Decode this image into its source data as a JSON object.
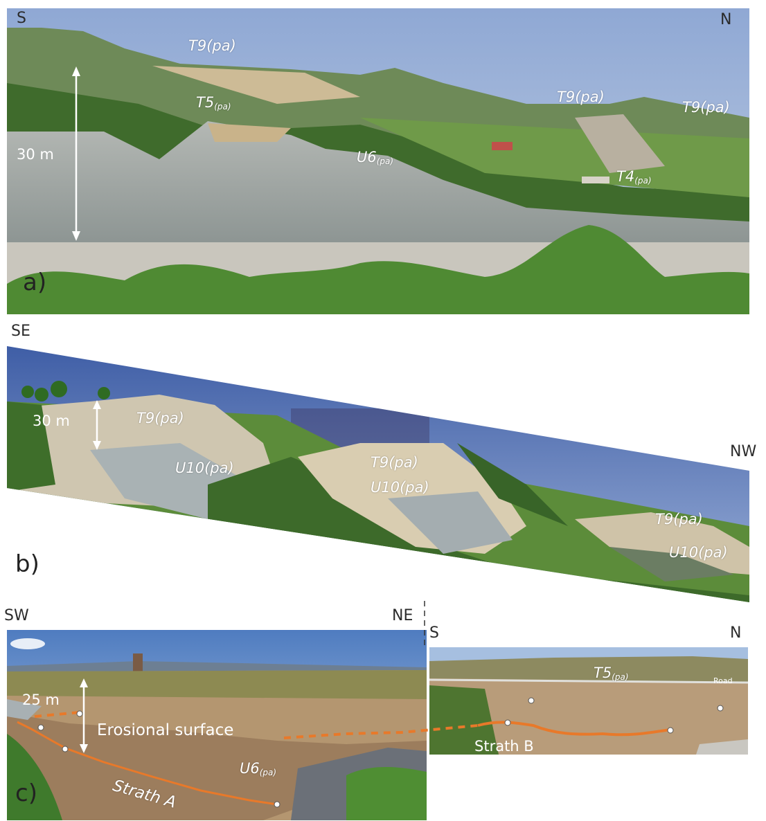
{
  "panel_a": {
    "compass_left": "S",
    "compass_right": "N",
    "panel_label": "a)",
    "scale": "30 m",
    "labels": {
      "t9_1": "T9(pa)",
      "t5": "T5",
      "t5_sub": "(pa)",
      "u6": "U6",
      "u6_sub": "(pa)",
      "t9_2": "T9(pa)",
      "t9_3": "T9(pa)",
      "t4": "T4",
      "t4_sub": "(pa)"
    }
  },
  "panel_b": {
    "compass_left": "SE",
    "compass_right": "NW",
    "panel_label": "b)",
    "scale": "30 m",
    "labels": {
      "t9_1": "T9(pa)",
      "u10_1": "U10(pa)",
      "t9_2": "T9(pa)",
      "u10_2": "U10(pa)",
      "t9_3": "T9(pa)",
      "u10_3": "U10(pa)"
    }
  },
  "panel_c": {
    "compass_left": "SW",
    "compass_mid": "NE",
    "compass_right_s": "S",
    "compass_right_n": "N",
    "panel_label": "c)",
    "scale": "25 m",
    "labels": {
      "erosional": "Erosional surface",
      "u6": "U6",
      "u6_sub": "(pa)",
      "strath_a": "Strath A",
      "strath_b": "Strath B",
      "t5": "T5",
      "t5_sub": "(pa)",
      "road": "Road"
    }
  },
  "colors": {
    "strath_line": "#e8792a",
    "sky": "#a9bedb",
    "vegetation": "#4f7a34",
    "badland_grey": "#9aa2a3",
    "gravel": "#c9c6bd"
  }
}
